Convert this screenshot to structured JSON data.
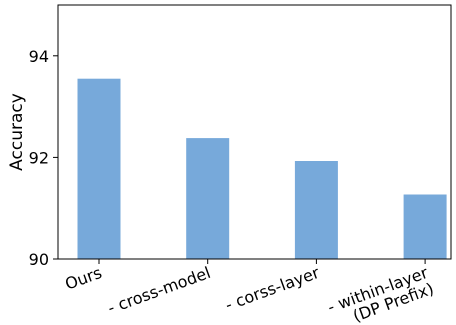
{
  "chart_data": {
    "type": "bar",
    "title": "",
    "xlabel": "",
    "ylabel": "Accuracy",
    "categories": [
      [
        "Ours"
      ],
      [
        "- cross-model"
      ],
      [
        "- corss-layer"
      ],
      [
        "- within-layer",
        "(DP Prefix)"
      ]
    ],
    "values": [
      93.55,
      92.38,
      91.93,
      91.27
    ],
    "ylim": [
      90,
      95
    ],
    "yticks": [
      90,
      92,
      94
    ],
    "bar_color": "#77a9da",
    "grid": false,
    "legend": "none"
  }
}
